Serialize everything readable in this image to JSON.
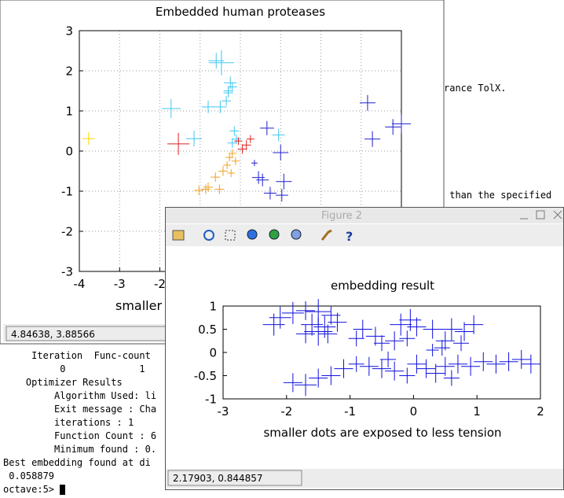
{
  "terminal": {
    "side_lines": [
      "rance TolX.",
      " than the specified"
    ],
    "lines": [
      "     Iteration  Func-count",
      "          0             1",
      "    Optimizer Results",
      "         Algorithm Used: li",
      "         Exit message : Cha",
      "         iterations : 1",
      "         Function Count : 6",
      "         Minimum found : 0.",
      "Best embedding found at di",
      " 0.058879",
      "octave:5> "
    ]
  },
  "figure1": {
    "title": "Embedded human proteases",
    "xlabel": "smaller",
    "status": "4.84638, 3.88566",
    "xlim": [
      -4,
      4
    ],
    "ylim": [
      -3,
      3
    ],
    "xticks": [
      -4,
      -3,
      -2,
      -1,
      0,
      1,
      2,
      3,
      4
    ],
    "yticks": [
      3,
      2,
      1,
      0,
      -1,
      -2,
      -3
    ],
    "grid": true,
    "series": [
      {
        "color": "#40c8f0",
        "x": [
          -0.47,
          -0.6,
          -0.25,
          -0.2,
          -0.3,
          -1.72,
          -1.15,
          -0.8,
          -0.5,
          -0.35,
          -0.3,
          0.95,
          -0.15,
          -0.1,
          -0.2
        ],
        "y": [
          2.2,
          2.25,
          1.7,
          1.6,
          1.5,
          1.06,
          0.31,
          1.1,
          1.1,
          1.25,
          1.45,
          0.4,
          0.5,
          0.3,
          0.2
        ],
        "size": [
          16,
          10,
          8,
          6,
          6,
          12,
          10,
          8,
          8,
          6,
          6,
          8,
          6,
          6,
          6
        ]
      },
      {
        "color": "#ffd700",
        "x": [
          -3.77
        ],
        "y": [
          0.31
        ],
        "size": [
          8
        ]
      },
      {
        "color": "#e02020",
        "x": [
          -1.54,
          0.05,
          0.15,
          0.25,
          -0.05
        ],
        "y": [
          0.18,
          0.05,
          0.15,
          0.3,
          0.25
        ],
        "size": [
          14,
          6,
          6,
          5,
          5
        ]
      },
      {
        "color": "#f0a020",
        "x": [
          -0.62,
          -0.43,
          -0.33,
          -0.27,
          -0.2,
          -0.52,
          -0.86,
          -0.8,
          -0.23,
          -0.12,
          -1.03
        ],
        "y": [
          -0.65,
          -0.5,
          -0.35,
          -0.16,
          -0.06,
          -0.95,
          -0.95,
          -0.9,
          -0.55,
          -0.25,
          -0.98
        ],
        "size": [
          6,
          6,
          5,
          5,
          5,
          6,
          6,
          6,
          5,
          5,
          6
        ]
      },
      {
        "color": "#2020d0",
        "x": [
          0.66,
          1.0,
          1.08,
          0.45,
          0.55,
          0.74,
          1.03,
          3.16,
          3.28,
          3.79,
          4.0,
          0.35
        ],
        "y": [
          0.57,
          -0.04,
          -0.76,
          -0.66,
          -0.72,
          -1.05,
          -1.1,
          1.2,
          0.3,
          0.6,
          0.68,
          -0.3
        ],
        "size": [
          9,
          10,
          10,
          8,
          8,
          8,
          8,
          10,
          10,
          10,
          12,
          4
        ]
      }
    ]
  },
  "figure2": {
    "window_title": "Figure 2",
    "title": "embedding result",
    "xlabel": "smaller dots are exposed to less tension",
    "status": "2.17903, 0.844857",
    "xlim": [
      -3,
      2
    ],
    "ylim": [
      -1,
      1
    ],
    "xticks": [
      -3,
      -2,
      -1,
      0,
      1,
      2
    ],
    "yticks": [
      1,
      0.5,
      0,
      -0.5,
      -1
    ],
    "series": [
      {
        "color": "#1010e0",
        "x": [
          -2.2,
          -2.1,
          -1.9,
          -1.7,
          -1.5,
          -1.3,
          -1.2,
          -1.5,
          -1.6,
          -1.4,
          -1.35,
          -1.7,
          -0.9,
          -0.8,
          -0.6,
          -0.5,
          -0.3,
          -0.2,
          -0.05,
          0.05,
          -0.1,
          0.3,
          0.5,
          0.6,
          0.8,
          0.95,
          0.75,
          0.3,
          0.45,
          -1.9,
          -1.7,
          -1.5,
          -1.3,
          -1.1,
          -0.9,
          -0.7,
          -0.5,
          -0.3,
          -0.1,
          0.05,
          0.2,
          0.35,
          0.5,
          0.7,
          0.9,
          1.1,
          1.3,
          1.5,
          1.7,
          1.85,
          -0.4,
          0.6
        ],
        "y": [
          0.6,
          0.75,
          0.85,
          0.9,
          0.88,
          0.8,
          0.65,
          0.45,
          0.6,
          0.55,
          0.4,
          0.4,
          0.3,
          0.5,
          0.35,
          0.2,
          0.25,
          0.6,
          0.7,
          0.55,
          0.3,
          0.5,
          0.25,
          0.5,
          0.45,
          0.6,
          0.2,
          0.05,
          0.1,
          -0.65,
          -0.7,
          -0.55,
          -0.5,
          -0.35,
          -0.25,
          -0.3,
          -0.35,
          -0.4,
          -0.5,
          -0.25,
          -0.35,
          -0.45,
          -0.3,
          -0.25,
          -0.3,
          -0.2,
          -0.25,
          -0.2,
          -0.15,
          -0.25,
          -0.15,
          -0.55
        ],
        "size": [
          14,
          14,
          14,
          12,
          16,
          12,
          12,
          18,
          14,
          14,
          12,
          12,
          10,
          12,
          12,
          10,
          12,
          14,
          14,
          12,
          10,
          12,
          12,
          14,
          12,
          12,
          10,
          8,
          10,
          12,
          14,
          12,
          12,
          12,
          10,
          12,
          12,
          12,
          10,
          12,
          12,
          12,
          12,
          12,
          12,
          12,
          12,
          12,
          12,
          12,
          10,
          10
        ]
      }
    ]
  }
}
